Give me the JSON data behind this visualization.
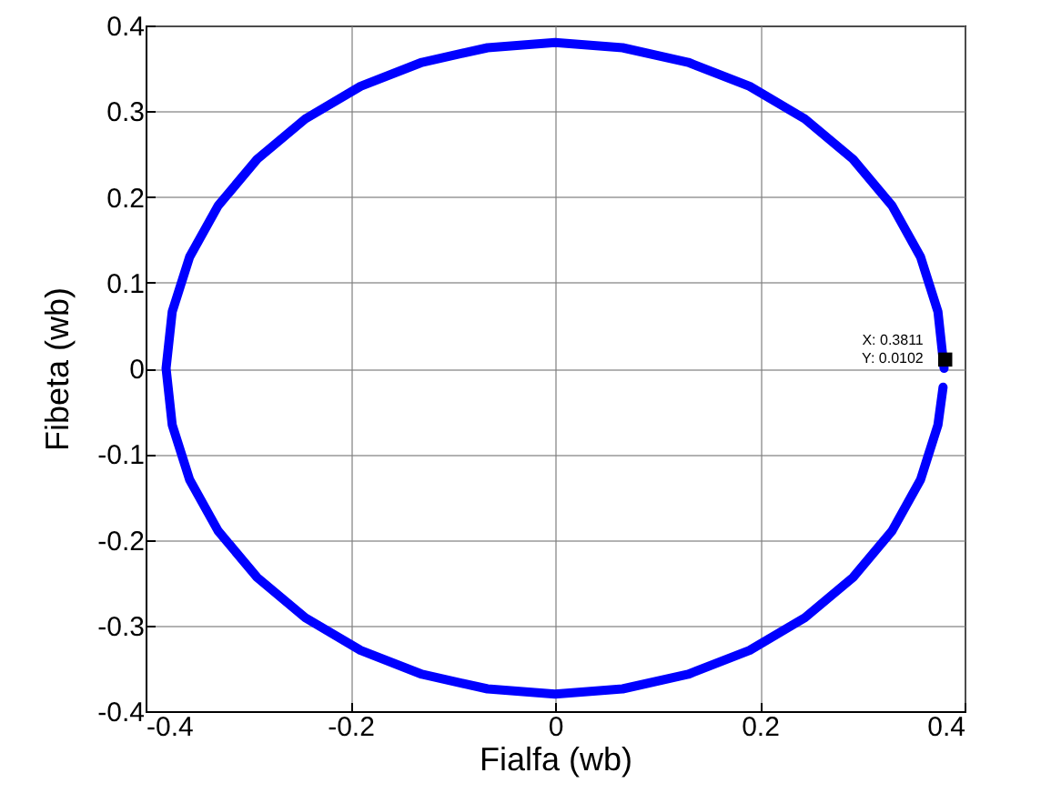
{
  "chart_data": {
    "type": "line",
    "xlabel": "Fialfa (wb)",
    "ylabel": "Fibeta (wb)",
    "series": [
      {
        "color": "#0000ff",
        "x": [
          0.38,
          0.374,
          0.357,
          0.329,
          0.291,
          0.244,
          0.19,
          0.13,
          0.066,
          0,
          -0.066,
          -0.13,
          -0.19,
          -0.244,
          -0.291,
          -0.329,
          -0.357,
          -0.374,
          -0.38,
          -0.374,
          -0.357,
          -0.329,
          -0.291,
          -0.244,
          -0.19,
          -0.13,
          -0.066,
          0,
          0.066,
          0.13,
          0.19,
          0.244,
          0.291,
          0.329,
          0.357,
          0.374,
          0.379
        ],
        "values": [
          0,
          0.066,
          0.13,
          0.19,
          0.244,
          0.291,
          0.329,
          0.357,
          0.374,
          0.38,
          0.374,
          0.357,
          0.329,
          0.291,
          0.244,
          0.19,
          0.13,
          0.066,
          0,
          -0.066,
          -0.13,
          -0.19,
          -0.244,
          -0.291,
          -0.329,
          -0.357,
          -0.374,
          -0.38,
          -0.374,
          -0.357,
          -0.329,
          -0.291,
          -0.244,
          -0.19,
          -0.13,
          -0.066,
          -0.022
        ]
      }
    ],
    "xlim": [
      -0.4,
      0.4
    ],
    "xticks": [
      -0.4,
      -0.2,
      0,
      0.2,
      0.4
    ],
    "ylim": [
      -0.4,
      0.4
    ],
    "yticks": [
      -0.4,
      -0.3,
      -0.2,
      -0.1,
      0,
      0.1,
      0.2,
      0.3,
      0.4
    ],
    "grid": true,
    "marker": "none",
    "line_style": "solid",
    "annotations": [
      {
        "text": "X: 0.3811\nY: 0.0102",
        "x": 0.3811,
        "y": 0.0102
      }
    ]
  }
}
